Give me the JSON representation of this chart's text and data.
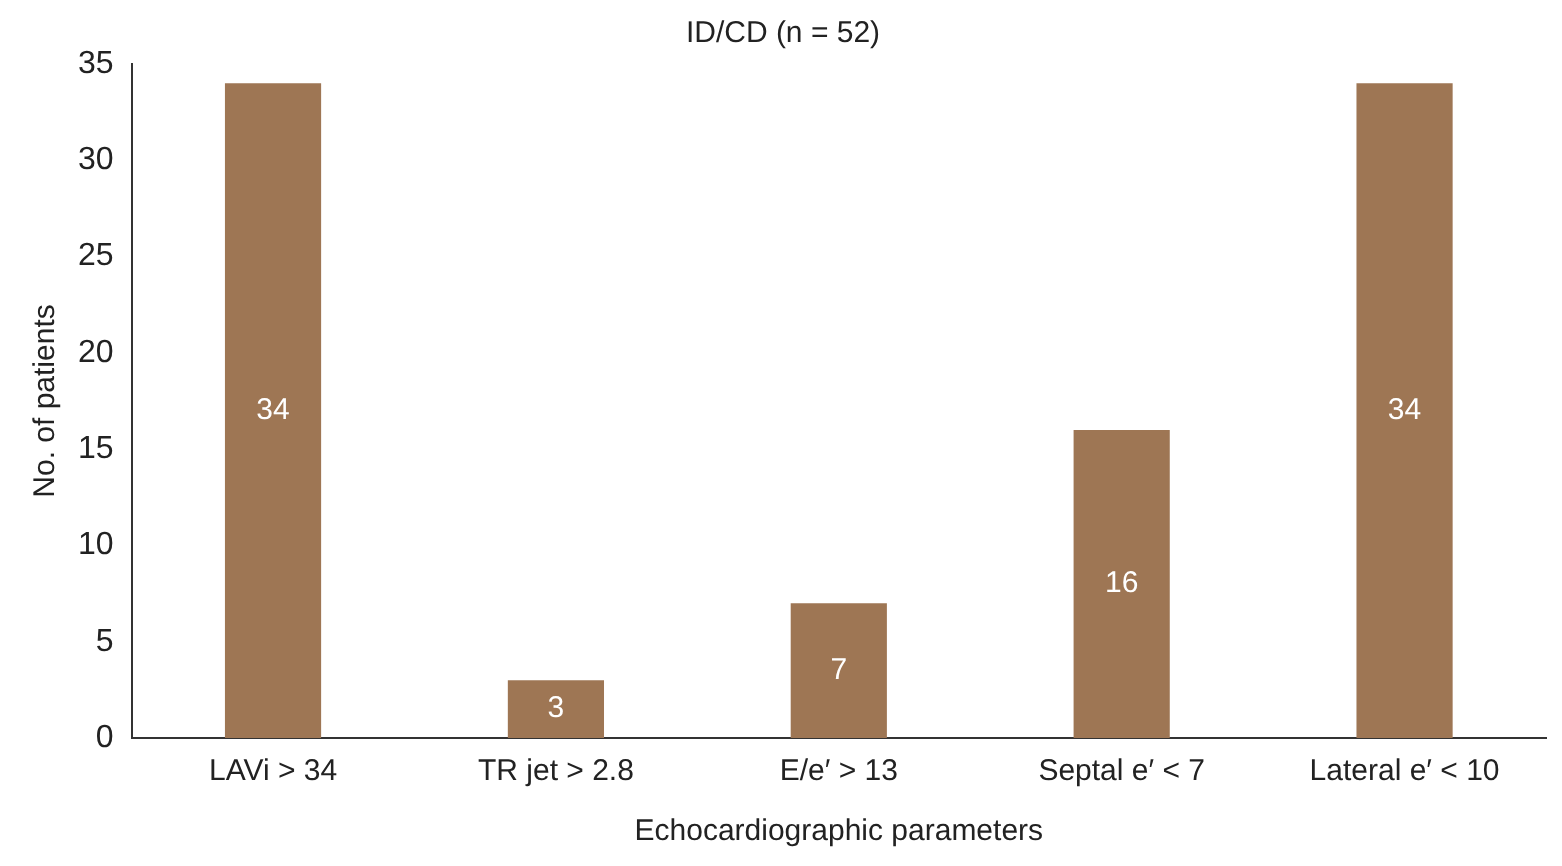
{
  "chart_data": {
    "type": "bar",
    "title": "ID/CD (n = 52)",
    "xlabel": "Echocardiographic parameters",
    "ylabel": "No. of patients",
    "categories": [
      "LAVi > 34",
      "TR jet > 2.8",
      "E/e′ > 13",
      "Septal e′ < 7",
      "Lateral e′ < 10"
    ],
    "values": [
      34,
      3,
      7,
      16,
      34
    ],
    "color": "#9e7654",
    "ylim": [
      0,
      35
    ],
    "yticks": [
      0,
      5,
      10,
      15,
      20,
      25,
      30,
      35
    ],
    "grid": false,
    "legend": false,
    "data_labels": true
  }
}
